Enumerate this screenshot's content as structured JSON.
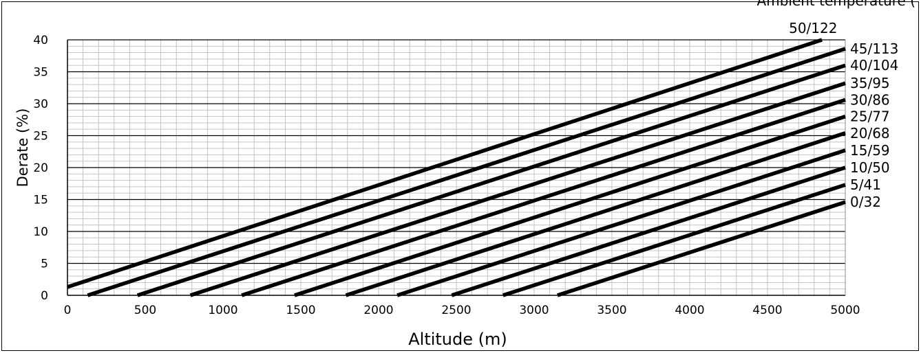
{
  "chart_data": {
    "type": "line",
    "title": "",
    "top_right_text": "Ambient temperature (",
    "xlabel": "Altitude (m)",
    "ylabel": "Derate (%)",
    "xlim": [
      0,
      5000
    ],
    "ylim": [
      0,
      40
    ],
    "x_ticks": [
      0,
      500,
      1000,
      1500,
      2000,
      2500,
      3000,
      3500,
      4000,
      4500,
      5000
    ],
    "y_ticks": [
      0,
      5,
      10,
      15,
      20,
      25,
      30,
      35,
      40
    ],
    "grid": true,
    "series": [
      {
        "name": "0/32",
        "x": [
          3150,
          5000
        ],
        "y": [
          0,
          14.6
        ]
      },
      {
        "name": "5/41",
        "x": [
          2800,
          5000
        ],
        "y": [
          0,
          17.3
        ]
      },
      {
        "name": "10/50",
        "x": [
          2470,
          5000
        ],
        "y": [
          0,
          20.0
        ]
      },
      {
        "name": "15/59",
        "x": [
          2120,
          5000
        ],
        "y": [
          0,
          22.7
        ]
      },
      {
        "name": "20/68",
        "x": [
          1790,
          5000
        ],
        "y": [
          0,
          25.4
        ]
      },
      {
        "name": "25/77",
        "x": [
          1460,
          5000
        ],
        "y": [
          0,
          28.0
        ]
      },
      {
        "name": "30/86",
        "x": [
          1120,
          5000
        ],
        "y": [
          0,
          30.6
        ]
      },
      {
        "name": "35/95",
        "x": [
          790,
          5000
        ],
        "y": [
          0,
          33.2
        ]
      },
      {
        "name": "40/104",
        "x": [
          450,
          5000
        ],
        "y": [
          0,
          36.0
        ]
      },
      {
        "name": "45/113",
        "x": [
          130,
          5000
        ],
        "y": [
          0,
          38.6
        ]
      },
      {
        "name": "50/122",
        "x": [
          0,
          4850
        ],
        "y": [
          1.3,
          40.0
        ]
      }
    ]
  }
}
